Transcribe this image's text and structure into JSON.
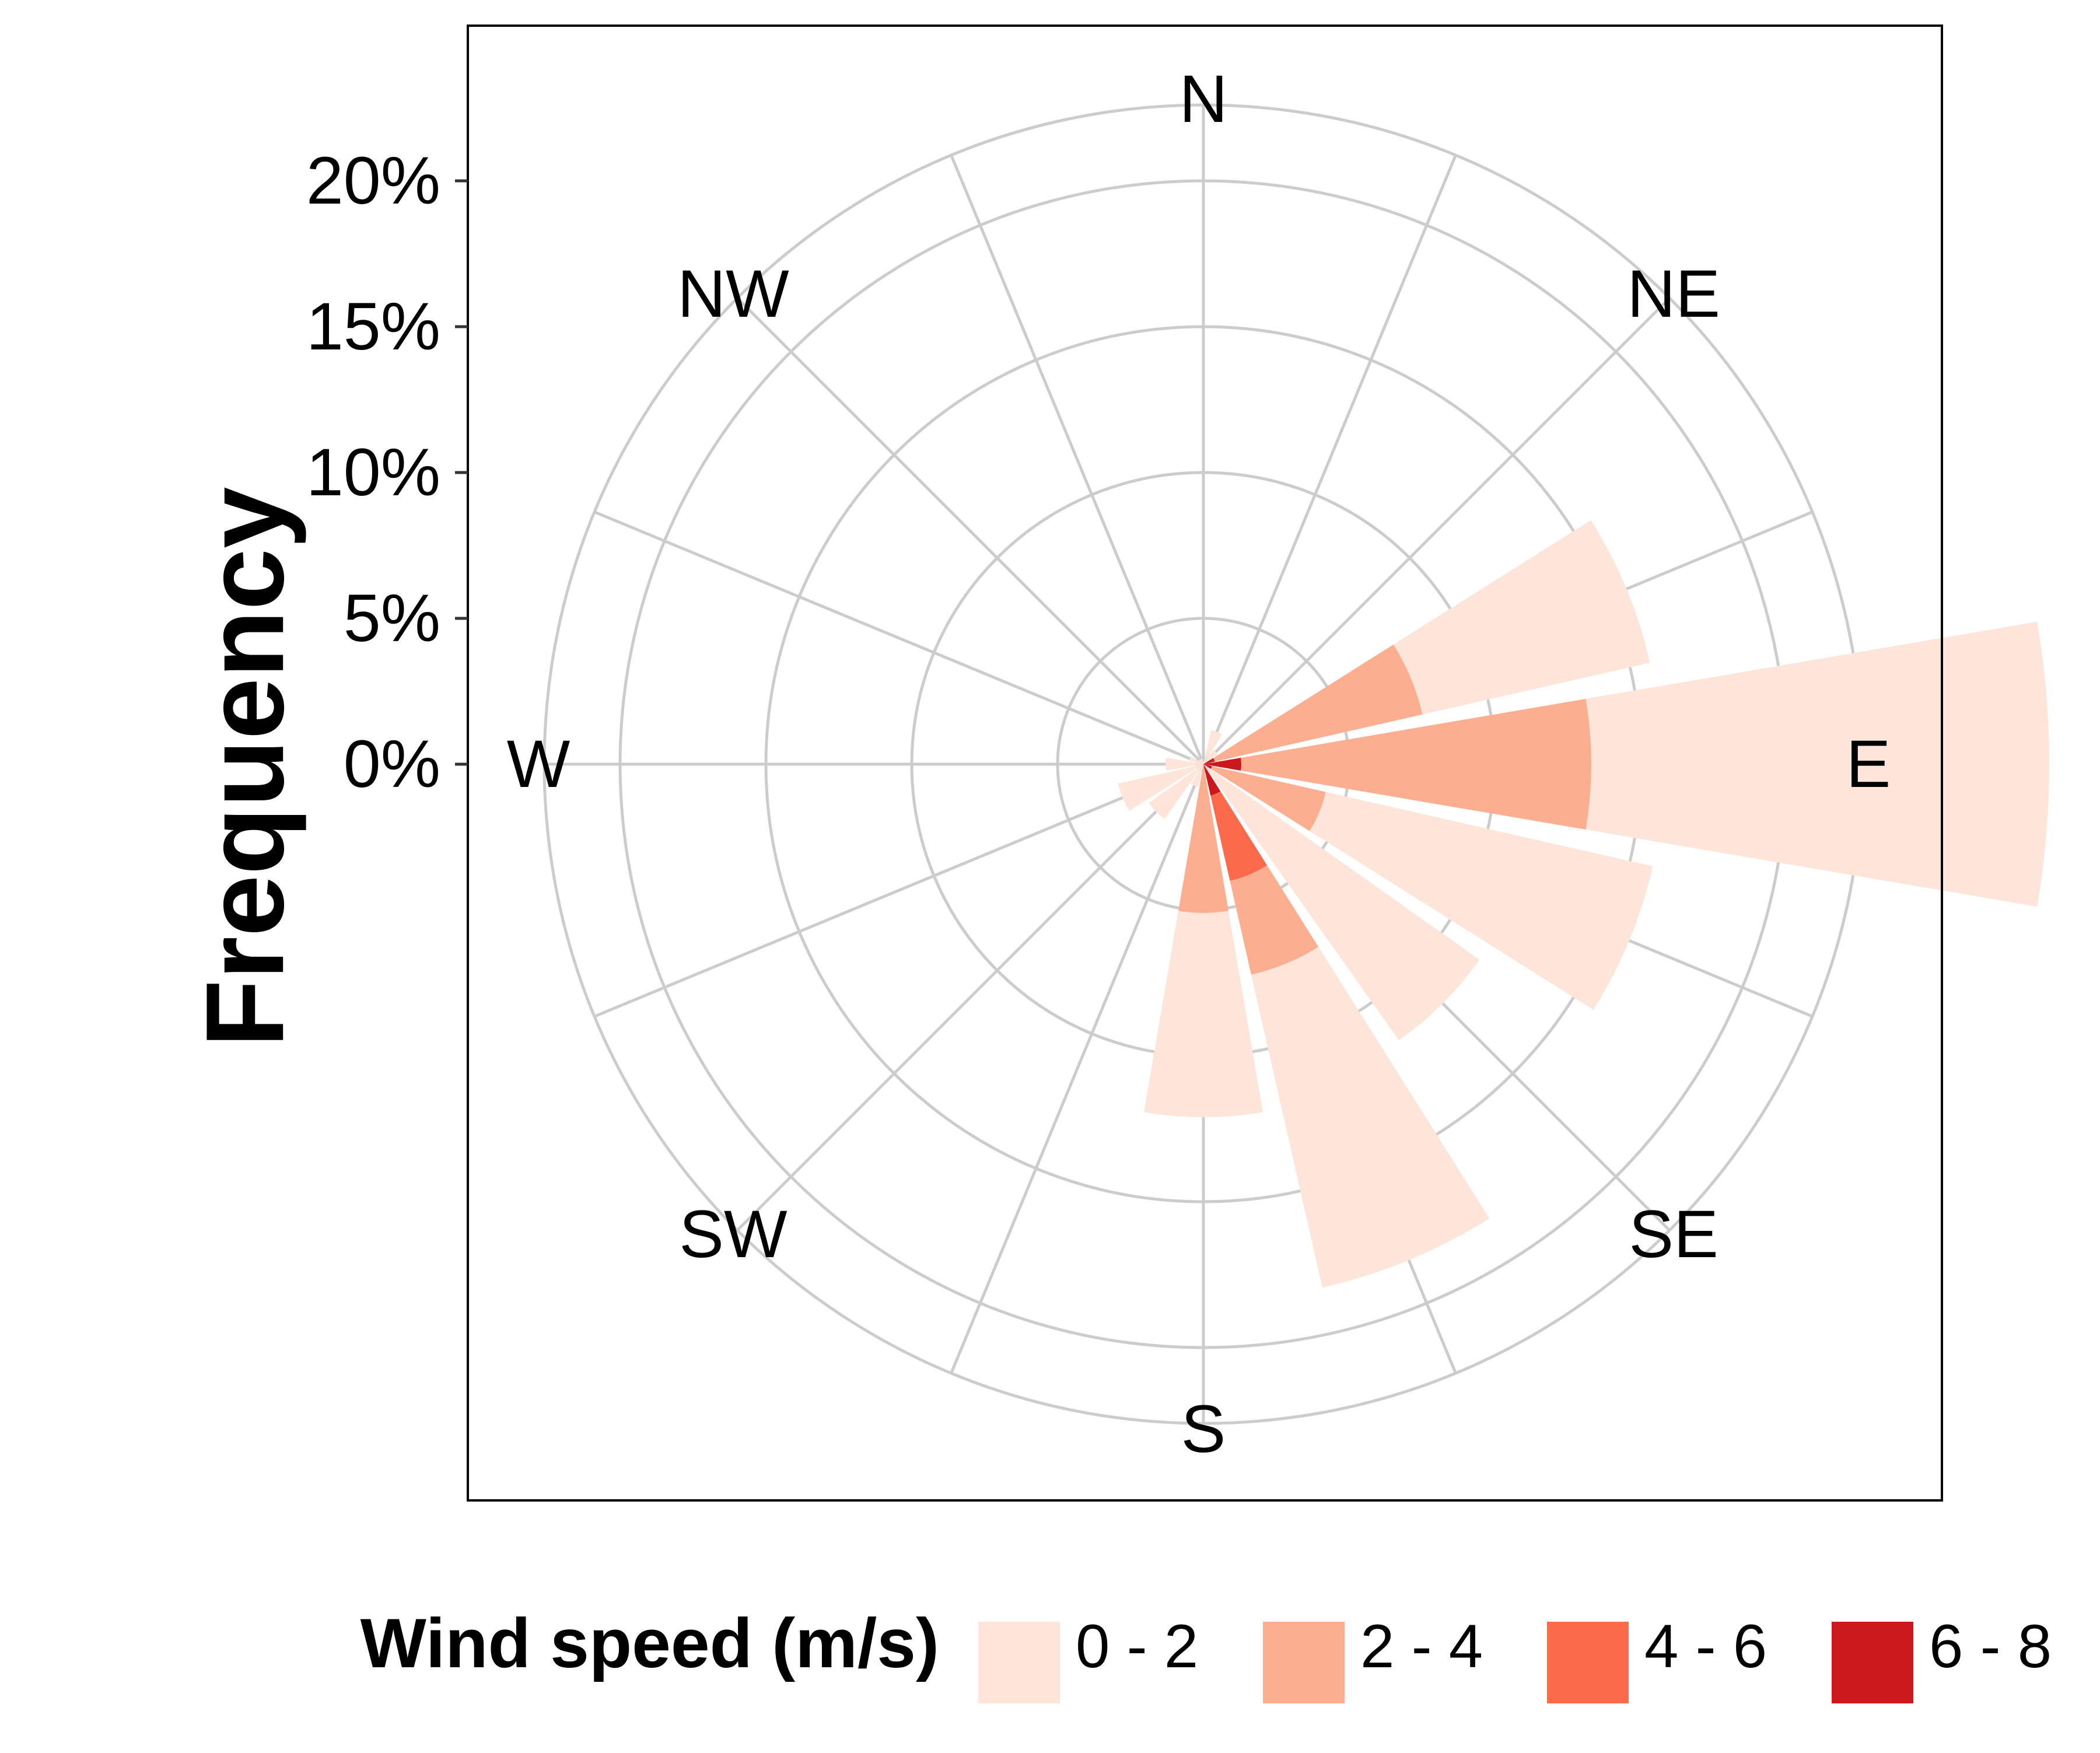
{
  "chart_data": {
    "type": "wind-rose",
    "ylabel": "Frequency",
    "radial_axis": {
      "ticks": [
        0,
        5,
        10,
        15,
        20
      ],
      "tick_labels": [
        "0%",
        "5%",
        "10%",
        "15%",
        "20%"
      ],
      "max": 25
    },
    "compass_labels": [
      "N",
      "NE",
      "E",
      "SE",
      "S",
      "SW",
      "W",
      "NW"
    ],
    "directions_deg": [
      0,
      22.5,
      45,
      67.5,
      90,
      112.5,
      135,
      157.5,
      180,
      202.5,
      225,
      247.5,
      270,
      292.5,
      315,
      337.5
    ],
    "legend": {
      "title": "Wind speed (m/s)",
      "position": "bottom"
    },
    "series": [
      {
        "name": "0 - 2",
        "color": "#FEE5D9",
        "values": [
          0.1,
          1.2,
          0.6,
          8.0,
          15.7,
          11.5,
          11.6,
          11.0,
          7.0,
          0.8,
          2.3,
          3.0,
          1.3,
          0.5,
          0.2,
          0.2
        ]
      },
      {
        "name": "2 - 4",
        "color": "#FCAE91",
        "values": [
          0.0,
          0.0,
          0.0,
          7.3,
          12.0,
          4.0,
          0.0,
          3.3,
          5.1,
          0.0,
          0.0,
          0.0,
          0.0,
          0.0,
          0.0,
          0.0
        ]
      },
      {
        "name": "4 - 6",
        "color": "#FB6A4A",
        "values": [
          0.0,
          0.0,
          0.0,
          0.0,
          0.0,
          0.0,
          0.0,
          3.0,
          0.0,
          0.0,
          0.0,
          0.0,
          0.0,
          0.0,
          0.0,
          0.0
        ]
      },
      {
        "name": "6 - 8",
        "color": "#CB181D",
        "values": [
          0.0,
          0.0,
          0.0,
          0.4,
          1.3,
          0.3,
          0.0,
          1.1,
          0.0,
          0.0,
          0.0,
          0.0,
          0.0,
          0.0,
          0.0,
          0.0
        ]
      }
    ]
  },
  "colors": {
    "grid": "#CCCCCC",
    "panel_border": "#000000"
  }
}
